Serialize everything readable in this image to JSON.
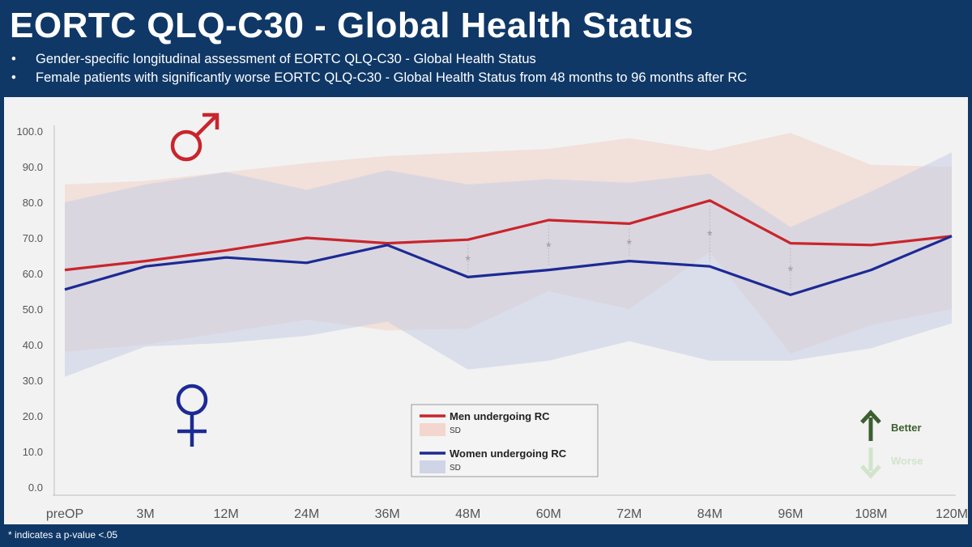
{
  "header": {
    "title": "EORTC QLQ-C30 - Global Health Status",
    "bullets": [
      "Gender-specific longitudinal assessment of EORTC QLQ-C30 - Global Health Status",
      "Female patients with significantly worse EORTC QLQ-C30 - Global Health Status from 48 months to 96 months after RC"
    ]
  },
  "footnote": "* indicates a p-value <.05",
  "colors": {
    "men": "#c9252c",
    "women": "#1c2a94",
    "men_sd": "#f2c9bd",
    "women_sd": "#c6cde3",
    "better": "#3b5f2e",
    "worse": "#d2e3cc"
  },
  "icons": {
    "male": "male-symbol-icon",
    "female": "female-symbol-icon",
    "better": "arrow-up-icon",
    "worse": "arrow-down-icon"
  },
  "indicator": {
    "better": "Better",
    "worse": "Worse"
  },
  "legend": {
    "men_label": "Men undergoing RC",
    "men_sd_label": "SD",
    "women_label": "Women undergoing RC",
    "women_sd_label": "SD"
  },
  "chart_data": {
    "type": "line",
    "categories": [
      "preOP",
      "3M",
      "12M",
      "24M",
      "36M",
      "48M",
      "60M",
      "72M",
      "84M",
      "96M",
      "108M",
      "120M"
    ],
    "ylim": [
      0,
      100
    ],
    "yticks": [
      0,
      10,
      20,
      30,
      40,
      50,
      60,
      70,
      80,
      90,
      100
    ],
    "ytick_labels": [
      "0.0",
      "10.0",
      "20.0",
      "30.0",
      "40.0",
      "50.0",
      "60.0",
      "70.0",
      "80.0",
      "90.0",
      "100.0"
    ],
    "grid": false,
    "legend_position": "bottom-center",
    "series": [
      {
        "name": "Men undergoing RC",
        "values": [
          61,
          63.5,
          66.5,
          70,
          68.5,
          69.5,
          75,
          74,
          80.5,
          68.5,
          68,
          70.5
        ],
        "sd_upper": [
          85,
          86,
          88.5,
          91,
          93,
          94,
          95,
          98,
          94.5,
          99.5,
          90.5,
          90
        ],
        "sd_lower": [
          38,
          40,
          43.5,
          47,
          44,
          44.5,
          55,
          50,
          66,
          37.5,
          45.5,
          50
        ]
      },
      {
        "name": "Women undergoing RC",
        "values": [
          55.5,
          62,
          64.5,
          63,
          68,
          59,
          61,
          63.5,
          62,
          54,
          61,
          70.5
        ],
        "sd_upper": [
          80,
          85,
          88.5,
          83.5,
          89,
          85,
          86.5,
          85.5,
          88,
          73,
          83,
          94
        ],
        "sd_lower": [
          31,
          39.5,
          40.5,
          42.5,
          46.5,
          33,
          35.5,
          41,
          35.5,
          35.5,
          39,
          46
        ]
      }
    ],
    "significance_marker": "*",
    "significant_categories": [
      "48M",
      "60M",
      "72M",
      "84M",
      "96M"
    ]
  }
}
